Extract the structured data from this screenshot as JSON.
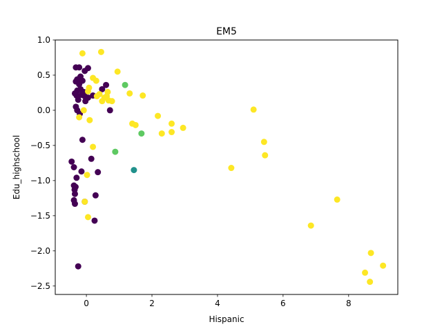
{
  "chart_data": {
    "type": "scatter",
    "title": "EM5",
    "xlabel": "Hispanic",
    "ylabel": "Edu_highschool",
    "xlim": [
      -0.95,
      9.5
    ],
    "ylim": [
      -2.62,
      1.0
    ],
    "xticks": [
      0,
      2,
      4,
      6,
      8
    ],
    "xtick_labels": [
      "0",
      "2",
      "4",
      "6",
      "8"
    ],
    "yticks": [
      1.0,
      0.5,
      0.0,
      -0.5,
      -1.0,
      -1.5,
      -2.0,
      -2.5
    ],
    "ytick_labels": [
      "1.0",
      "0.5",
      "0.0",
      "−0.5",
      "−1.0",
      "−1.5",
      "−2.0",
      "−2.5"
    ],
    "grid": false,
    "legend": "none",
    "colors": {
      "purple": "#440154",
      "teal": "#21918c",
      "green": "#5ec962",
      "yellow": "#fde725"
    },
    "series": [
      {
        "color": "purple",
        "points": [
          [
            -0.32,
            0.61
          ],
          [
            -0.22,
            0.61
          ],
          [
            -0.05,
            0.56
          ],
          [
            0.05,
            0.6
          ],
          [
            -0.28,
            0.44
          ],
          [
            -0.18,
            0.48
          ],
          [
            -0.32,
            0.41
          ],
          [
            -0.22,
            0.37
          ],
          [
            -0.12,
            0.42
          ],
          [
            -0.28,
            0.28
          ],
          [
            -0.18,
            0.3
          ],
          [
            -0.3,
            0.21
          ],
          [
            -0.35,
            0.24
          ],
          [
            -0.15,
            0.22
          ],
          [
            -0.08,
            0.26
          ],
          [
            -0.05,
            0.2
          ],
          [
            -0.25,
            0.15
          ],
          [
            -0.03,
            0.13
          ],
          [
            0.05,
            0.18
          ],
          [
            0.2,
            0.21
          ],
          [
            -0.32,
            0.05
          ],
          [
            -0.28,
            0.0
          ],
          [
            -0.2,
            -0.05
          ],
          [
            0.48,
            0.3
          ],
          [
            0.6,
            0.36
          ],
          [
            0.72,
            0.0
          ],
          [
            -0.12,
            -0.42
          ],
          [
            -0.45,
            -0.73
          ],
          [
            -0.38,
            -0.81
          ],
          [
            0.15,
            -0.69
          ],
          [
            -0.15,
            -0.87
          ],
          [
            0.35,
            -0.88
          ],
          [
            -0.3,
            -0.96
          ],
          [
            -0.38,
            -1.07
          ],
          [
            -0.33,
            -1.09
          ],
          [
            -0.36,
            -1.13
          ],
          [
            -0.35,
            -1.19
          ],
          [
            -0.38,
            -1.28
          ],
          [
            -0.35,
            -1.33
          ],
          [
            -0.05,
            -1.3
          ],
          [
            0.28,
            -1.21
          ],
          [
            0.25,
            -1.57
          ],
          [
            -0.25,
            -2.22
          ]
        ]
      },
      {
        "color": "teal",
        "points": [
          [
            1.45,
            -0.85
          ]
        ]
      },
      {
        "color": "green",
        "points": [
          [
            1.18,
            0.36
          ],
          [
            1.68,
            -0.33
          ],
          [
            0.88,
            -0.59
          ]
        ]
      },
      {
        "color": "yellow",
        "points": [
          [
            -0.12,
            0.81
          ],
          [
            0.45,
            0.83
          ],
          [
            0.95,
            0.55
          ],
          [
            0.2,
            0.46
          ],
          [
            0.3,
            0.42
          ],
          [
            0.08,
            0.32
          ],
          [
            0.05,
            0.27
          ],
          [
            0.4,
            0.23
          ],
          [
            0.32,
            0.2
          ],
          [
            0.65,
            0.26
          ],
          [
            0.62,
            0.2
          ],
          [
            0.68,
            0.14
          ],
          [
            0.78,
            0.13
          ],
          [
            0.48,
            0.13
          ],
          [
            0.55,
            0.18
          ],
          [
            1.32,
            0.24
          ],
          [
            1.72,
            0.21
          ],
          [
            -0.08,
            0.0
          ],
          [
            -0.22,
            -0.1
          ],
          [
            0.1,
            -0.14
          ],
          [
            2.18,
            -0.08
          ],
          [
            1.4,
            -0.19
          ],
          [
            1.5,
            -0.21
          ],
          [
            2.6,
            -0.19
          ],
          [
            2.95,
            -0.25
          ],
          [
            2.3,
            -0.33
          ],
          [
            2.6,
            -0.31
          ],
          [
            5.1,
            0.01
          ],
          [
            5.42,
            -0.45
          ],
          [
            5.45,
            -0.64
          ],
          [
            4.42,
            -0.82
          ],
          [
            0.2,
            -0.52
          ],
          [
            0.02,
            -0.92
          ],
          [
            -0.05,
            -1.3
          ],
          [
            0.05,
            -1.52
          ],
          [
            7.65,
            -1.27
          ],
          [
            6.85,
            -1.64
          ],
          [
            8.68,
            -2.03
          ],
          [
            8.5,
            -2.31
          ],
          [
            8.65,
            -2.44
          ],
          [
            9.05,
            -2.21
          ]
        ]
      }
    ]
  }
}
